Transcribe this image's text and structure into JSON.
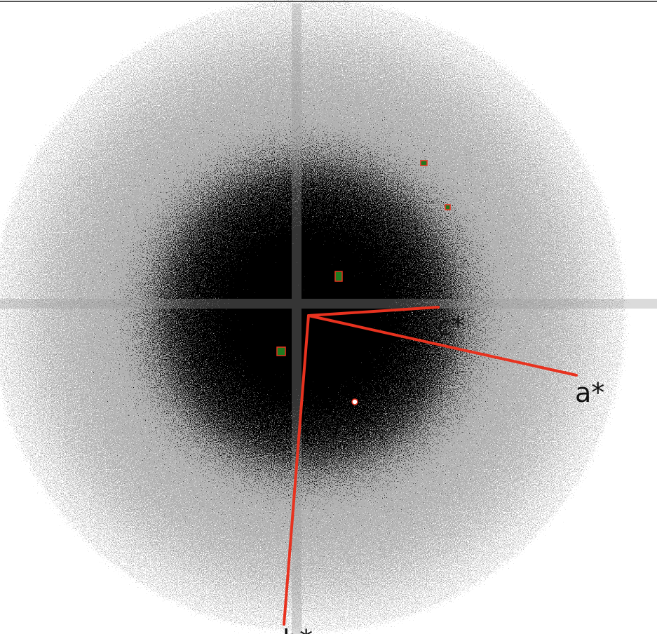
{
  "axes": [
    {
      "label": "c*"
    },
    {
      "label": "a*"
    },
    {
      "label": "b*"
    }
  ]
}
